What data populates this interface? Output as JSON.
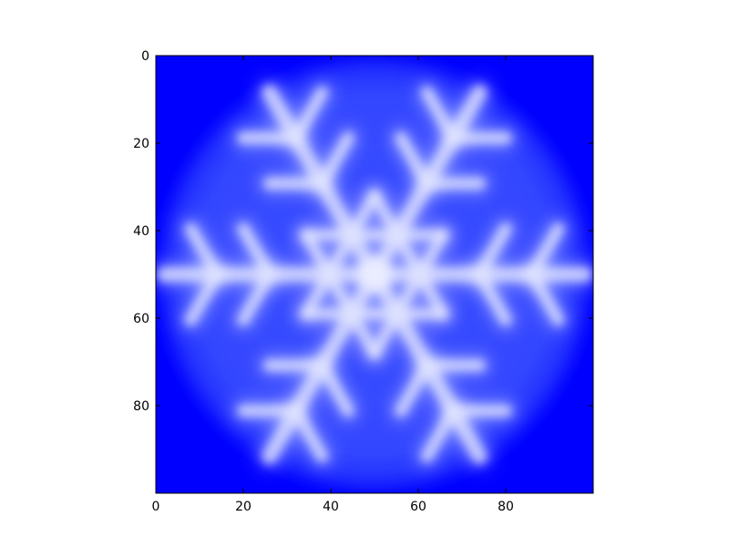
{
  "chart_data": {
    "type": "heatmap",
    "title": "",
    "xlabel": "",
    "ylabel": "",
    "xlim": [
      0,
      100
    ],
    "ylim": [
      100,
      0
    ],
    "y_axis_inverted": true,
    "grid": false,
    "image_size": [
      100,
      100
    ],
    "colormap": [
      "#0000ff",
      "#ffffff"
    ],
    "description": "",
    "xticks": [
      0,
      20,
      40,
      60,
      80
    ],
    "yticks": [
      0,
      20,
      40,
      60,
      80
    ],
    "xtick_labels": [
      "0",
      "20",
      "40",
      "60",
      "80"
    ],
    "ytick_labels": [
      "0",
      "20",
      "40",
      "60",
      "80"
    ],
    "snowflake": {
      "center": [
        50,
        50
      ],
      "disc_radius": 49,
      "arm_length": 48,
      "hexagram_radius": 18,
      "branch_offsets": [
        24,
        36
      ],
      "branch_lengths": [
        12,
        12
      ]
    }
  }
}
